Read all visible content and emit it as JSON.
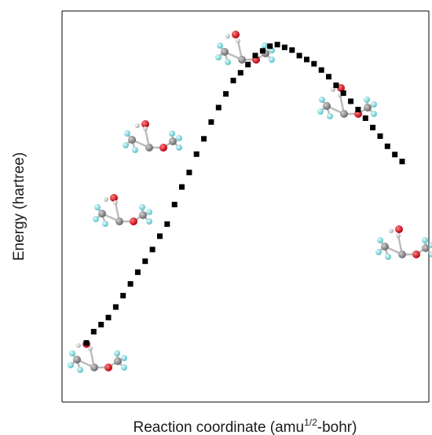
{
  "chart_data": {
    "type": "scatter",
    "title": "",
    "xlabel_prefix": "Reaction coordinate (amu",
    "xlabel_superscript": "1/2",
    "xlabel_suffix": "-bohr)",
    "ylabel": "Energy (hartree)",
    "x_ticks": [],
    "y_ticks": [],
    "grid": false,
    "legend": "none",
    "marker": "square",
    "marker_color": "#000000",
    "xlim": [
      0,
      46
    ],
    "ylim": [
      0,
      100
    ],
    "series": [
      {
        "x": [
          1,
          2,
          3,
          4,
          5,
          6,
          7,
          8,
          9,
          10,
          11,
          12,
          13,
          14,
          15,
          16,
          17,
          18,
          19,
          20,
          21,
          22,
          23,
          24,
          25,
          26,
          27,
          28,
          29,
          30,
          31,
          32,
          33,
          34,
          35,
          36,
          37,
          38,
          39,
          40,
          41,
          42,
          43,
          44
        ],
        "values": [
          15.1,
          18.0,
          19.8,
          21.6,
          24.3,
          27.2,
          30.2,
          33.2,
          36.0,
          39.0,
          42.4,
          45.5,
          50.5,
          55.0,
          58.7,
          63.4,
          67.3,
          71.6,
          75.3,
          78.8,
          82.2,
          84.2,
          86.3,
          88.6,
          89.8,
          91.0,
          91.4,
          90.7,
          90.0,
          88.6,
          87.6,
          86.5,
          84.9,
          83.2,
          81.0,
          79.0,
          76.9,
          74.8,
          72.6,
          70.2,
          68.0,
          65.4,
          63.3,
          61.5
        ]
      }
    ]
  },
  "molecule_colors": {
    "oxygen": "#d8141e",
    "carbon": "#8a8a8a",
    "fluorine": "#7fd6dc",
    "hydrogen": "#e4e4e4"
  }
}
